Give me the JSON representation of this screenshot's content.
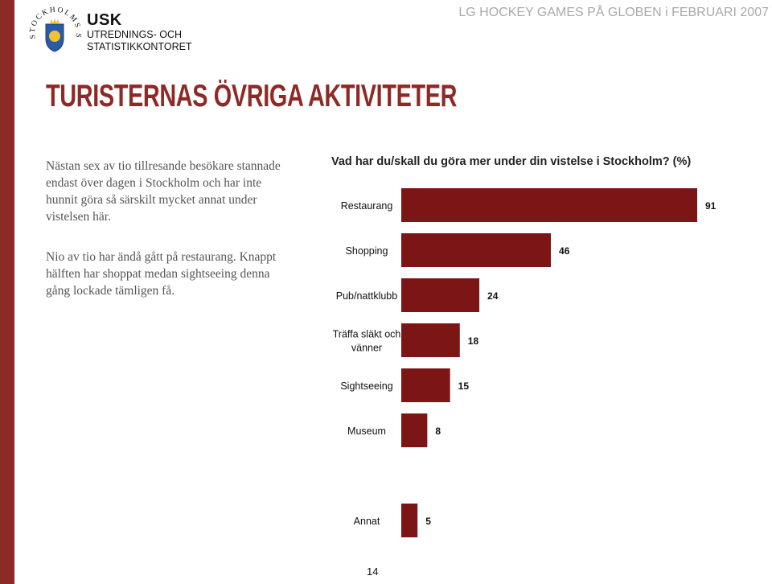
{
  "header": {
    "title": "LG HOCKEY GAMES PÅ GLOBEN i FEBRUARI 2007"
  },
  "logo": {
    "ring_text": "STOCKHOLMS STAD",
    "icon": "stockholm-crest-icon"
  },
  "org": {
    "name": "USK",
    "line1": "UTREDNINGS- OCH",
    "line2": "STATISTIKKONTORET"
  },
  "main_title": "TURISTERNAS ÖVRIGA AKTIVITETER",
  "text": {
    "para1": "Nästan sex av tio tillresande besökare stannade endast över dagen i Stockholm och har inte hunnit göra så särskilt mycket annat under vistelsen här.",
    "para2": "Nio av tio har ändå gått på restaurang. Knappt hälften har shoppat medan sightseeing denna gång lockade tämligen få."
  },
  "colors": {
    "bar": "#7b1516",
    "title": "#8e2a26",
    "stripe": "#8e2a26",
    "header": "#a9a9a9"
  },
  "chart_data": {
    "type": "bar",
    "orientation": "horizontal",
    "title": "Vad har du/skall du göra mer under din vistelse i  Stockholm? (%)",
    "categories": [
      "Restaurang",
      "Shopping",
      "Pub/nattklubb",
      "Träffa släkt och vänner",
      "Sightseeing",
      "Museum",
      "Annat"
    ],
    "category_lines": [
      [
        "Restaurang"
      ],
      [
        "Shopping"
      ],
      [
        "Pub/nattklubb"
      ],
      [
        "Träffa släkt och",
        "vänner"
      ],
      [
        "Sightseeing"
      ],
      [
        "Museum"
      ],
      [
        "Annat"
      ]
    ],
    "values": [
      91,
      46,
      24,
      18,
      15,
      8,
      5
    ],
    "value_labels": [
      "91",
      "46",
      "24",
      "18",
      "15",
      "8",
      "5"
    ],
    "xlim": [
      0,
      100
    ],
    "grid": false,
    "legend": "none"
  },
  "page_number": "14"
}
